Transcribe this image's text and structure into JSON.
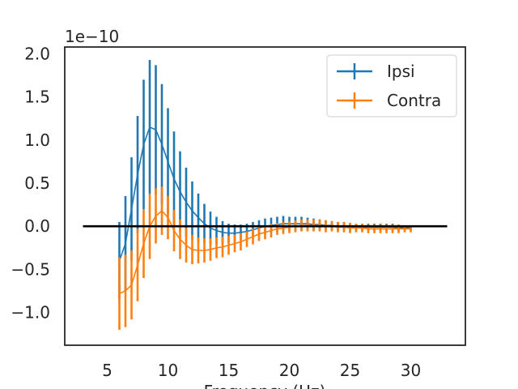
{
  "chart_data": {
    "type": "line",
    "title": "",
    "xlabel": "Frequency (Hz)",
    "ylabel": "",
    "y_offset_label": "1e−10",
    "y_scale_exponent": -10,
    "xlim": [
      1.5,
      34.5
    ],
    "ylim": [
      -1.38,
      2.08
    ],
    "x_ticks": [
      5,
      10,
      15,
      20,
      25,
      30
    ],
    "x_tick_labels": [
      "5",
      "10",
      "15",
      "20",
      "25",
      "30"
    ],
    "y_ticks": [
      -1.0,
      -0.5,
      0.0,
      0.5,
      1.0,
      1.5,
      2.0
    ],
    "y_tick_labels": [
      "−1.0",
      "−0.5",
      "0.0",
      "0.5",
      "1.0",
      "1.5",
      "2.0"
    ],
    "grid": false,
    "legend_position": "top-right",
    "x": [
      6.0,
      6.5,
      7.0,
      7.5,
      8.0,
      8.5,
      9.0,
      9.5,
      10.0,
      10.5,
      11.0,
      11.5,
      12.0,
      12.5,
      13.0,
      13.5,
      14.0,
      14.5,
      15.0,
      15.5,
      16.0,
      16.5,
      17.0,
      17.5,
      18.0,
      18.5,
      19.0,
      19.5,
      20.0,
      20.5,
      21.0,
      21.5,
      22.0,
      22.5,
      23.0,
      23.5,
      24.0,
      24.5,
      25.0,
      25.5,
      26.0,
      26.5,
      27.0,
      27.5,
      28.0,
      28.5,
      29.0,
      29.5,
      30.0
    ],
    "series": [
      {
        "name": "Ipsi",
        "color": "#1f77b4",
        "values": [
          -0.4,
          -0.2,
          0.2,
          0.6,
          0.95,
          1.15,
          1.12,
          0.95,
          0.75,
          0.55,
          0.4,
          0.28,
          0.18,
          0.1,
          0.03,
          -0.02,
          -0.05,
          -0.07,
          -0.08,
          -0.08,
          -0.07,
          -0.06,
          -0.04,
          -0.02,
          0.0,
          0.01,
          0.02,
          0.03,
          0.03,
          0.03,
          0.03,
          0.03,
          0.02,
          0.02,
          0.01,
          0.01,
          0.0,
          0.0,
          -0.01,
          -0.01,
          -0.01,
          -0.01,
          -0.01,
          -0.01,
          -0.01,
          -0.01,
          -0.02,
          -0.02,
          -0.02
        ],
        "errors": [
          0.45,
          0.55,
          0.6,
          0.68,
          0.75,
          0.78,
          0.75,
          0.7,
          0.62,
          0.55,
          0.47,
          0.4,
          0.34,
          0.28,
          0.23,
          0.19,
          0.16,
          0.13,
          0.11,
          0.1,
          0.09,
          0.09,
          0.09,
          0.09,
          0.09,
          0.09,
          0.09,
          0.09,
          0.08,
          0.08,
          0.08,
          0.07,
          0.07,
          0.06,
          0.06,
          0.05,
          0.05,
          0.05,
          0.05,
          0.04,
          0.04,
          0.04,
          0.04,
          0.04,
          0.04,
          0.04,
          0.04,
          0.03,
          0.03
        ]
      },
      {
        "name": "Contra",
        "color": "#ff7f0e",
        "values": [
          -0.78,
          -0.75,
          -0.68,
          -0.45,
          -0.2,
          0.0,
          0.12,
          0.18,
          0.1,
          -0.05,
          -0.15,
          -0.22,
          -0.27,
          -0.28,
          -0.28,
          -0.27,
          -0.25,
          -0.24,
          -0.22,
          -0.2,
          -0.18,
          -0.15,
          -0.12,
          -0.09,
          -0.07,
          -0.05,
          -0.03,
          -0.02,
          -0.01,
          0.0,
          0.01,
          0.01,
          0.01,
          0.01,
          0.0,
          0.0,
          -0.01,
          -0.01,
          -0.02,
          -0.02,
          -0.02,
          -0.03,
          -0.03,
          -0.03,
          -0.03,
          -0.03,
          -0.03,
          -0.03,
          -0.03
        ],
        "errors": [
          0.42,
          0.42,
          0.4,
          0.42,
          0.4,
          0.38,
          0.32,
          0.28,
          0.25,
          0.24,
          0.23,
          0.2,
          0.17,
          0.15,
          0.14,
          0.13,
          0.12,
          0.12,
          0.11,
          0.1,
          0.1,
          0.09,
          0.09,
          0.08,
          0.08,
          0.08,
          0.07,
          0.07,
          0.07,
          0.07,
          0.07,
          0.07,
          0.07,
          0.07,
          0.07,
          0.06,
          0.06,
          0.06,
          0.06,
          0.05,
          0.05,
          0.05,
          0.05,
          0.05,
          0.05,
          0.05,
          0.05,
          0.04,
          0.04
        ]
      }
    ],
    "reference_line": {
      "y": 0.0,
      "x_range": [
        3,
        33
      ],
      "color": "#000000"
    }
  }
}
